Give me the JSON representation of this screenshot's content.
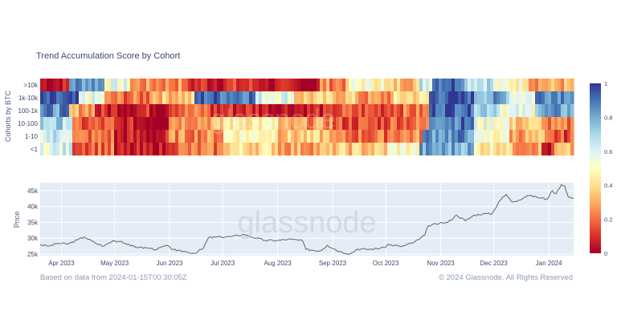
{
  "chart_data": [
    {
      "type": "heatmap",
      "title": "Trend Accumulation Score by Cohort",
      "ylabel": "Cohorts by BTC",
      "rows": [
        ">10k",
        "1k-10k",
        "100-1k",
        "10-100",
        "1-10",
        "<1"
      ],
      "colorbar": {
        "min": 0,
        "max": 1,
        "ticks": [
          0,
          0.2,
          0.4,
          0.6,
          0.8,
          1
        ],
        "tick_labels": [
          "0",
          "0.2",
          "0.4",
          "0.6",
          "0.8",
          "1"
        ],
        "colorscale": [
          "#a50026",
          "#d73027",
          "#f46d43",
          "#fdae61",
          "#fee090",
          "#ffffbf",
          "#e0f3f8",
          "#abd9e9",
          "#74add1",
          "#4575b4",
          "#313695"
        ]
      },
      "segments_note_free": true,
      "row_segments": {
        ">10k": [
          [
            "2023-03-20",
            0.05
          ],
          [
            "2023-04-05",
            0.85
          ],
          [
            "2023-04-25",
            0.55
          ],
          [
            "2023-05-10",
            0.25
          ],
          [
            "2023-06-10",
            0.1
          ],
          [
            "2023-07-25",
            0.02
          ],
          [
            "2023-08-25",
            0.25
          ],
          [
            "2023-09-10",
            0.5
          ],
          [
            "2023-09-30",
            0.35
          ],
          [
            "2023-10-20",
            0.65
          ],
          [
            "2023-10-28",
            0.95
          ],
          [
            "2023-11-15",
            0.7
          ],
          [
            "2023-11-30",
            0.5
          ],
          [
            "2023-12-20",
            0.3
          ]
        ],
        "1k-10k": [
          [
            "2023-03-20",
            0.9
          ],
          [
            "2023-04-10",
            0.55
          ],
          [
            "2023-04-25",
            0.2
          ],
          [
            "2023-05-20",
            0.35
          ],
          [
            "2023-06-15",
            0.92
          ],
          [
            "2023-07-20",
            0.6
          ],
          [
            "2023-08-10",
            0.35
          ],
          [
            "2023-09-15",
            0.25
          ],
          [
            "2023-10-05",
            0.4
          ],
          [
            "2023-10-25",
            0.95
          ],
          [
            "2023-11-20",
            0.8
          ],
          [
            "2023-12-10",
            0.6
          ],
          [
            "2023-12-25",
            0.9
          ]
        ],
        "100-1k": [
          [
            "2023-03-20",
            0.85
          ],
          [
            "2023-04-05",
            0.3
          ],
          [
            "2023-04-20",
            0.08
          ],
          [
            "2023-06-01",
            0.2
          ],
          [
            "2023-06-25",
            0.1
          ],
          [
            "2023-07-25",
            0.06
          ],
          [
            "2023-09-01",
            0.15
          ],
          [
            "2023-10-01",
            0.2
          ],
          [
            "2023-10-25",
            0.95
          ],
          [
            "2023-11-20",
            0.75
          ],
          [
            "2023-12-05",
            0.55
          ],
          [
            "2023-12-25",
            0.8
          ]
        ],
        "10-100": [
          [
            "2023-03-20",
            0.7
          ],
          [
            "2023-04-08",
            0.15
          ],
          [
            "2023-05-01",
            0.05
          ],
          [
            "2023-06-01",
            0.3
          ],
          [
            "2023-07-01",
            0.45
          ],
          [
            "2023-08-01",
            0.25
          ],
          [
            "2023-09-01",
            0.15
          ],
          [
            "2023-10-01",
            0.2
          ],
          [
            "2023-10-25",
            0.9
          ],
          [
            "2023-11-20",
            0.55
          ],
          [
            "2023-12-10",
            0.35
          ],
          [
            "2023-12-30",
            0.2
          ]
        ],
        "1-10": [
          [
            "2023-03-20",
            0.65
          ],
          [
            "2023-04-08",
            0.2
          ],
          [
            "2023-05-01",
            0.05
          ],
          [
            "2023-06-01",
            0.25
          ],
          [
            "2023-07-01",
            0.5
          ],
          [
            "2023-08-01",
            0.35
          ],
          [
            "2023-09-01",
            0.2
          ],
          [
            "2023-10-01",
            0.25
          ],
          [
            "2023-10-22",
            0.85
          ],
          [
            "2023-11-20",
            0.5
          ],
          [
            "2023-12-10",
            0.3
          ],
          [
            "2023-12-30",
            0.15
          ]
        ],
        "<1": [
          [
            "2023-03-20",
            0.6
          ],
          [
            "2023-04-08",
            0.2
          ],
          [
            "2023-05-01",
            0.03
          ],
          [
            "2023-06-01",
            0.2
          ],
          [
            "2023-07-01",
            0.4
          ],
          [
            "2023-08-01",
            0.3
          ],
          [
            "2023-09-01",
            0.35
          ],
          [
            "2023-10-01",
            0.5
          ],
          [
            "2023-10-20",
            0.8
          ],
          [
            "2023-11-20",
            0.45
          ],
          [
            "2023-12-10",
            0.3
          ],
          [
            "2023-12-28",
            0.05
          ],
          [
            "2024-01-05",
            0.3
          ]
        ]
      },
      "x_range": [
        "2023-03-20",
        "2024-01-15"
      ]
    },
    {
      "type": "line",
      "ylabel": "Price",
      "yticks": [
        25000,
        30000,
        35000,
        40000,
        45000
      ],
      "ytick_labels": [
        "25k",
        "30k",
        "35k",
        "40k",
        "45k"
      ],
      "ylim": [
        24500,
        47500
      ],
      "xticks": [
        "2023-04-01",
        "2023-05-01",
        "2023-06-01",
        "2023-07-01",
        "2023-08-01",
        "2023-09-01",
        "2023-10-01",
        "2023-11-01",
        "2023-12-01",
        "2024-01-01"
      ],
      "xtick_labels": [
        "Apr 2023",
        "May 2023",
        "Jun 2023",
        "Jul 2023",
        "Aug 2023",
        "Sep 2023",
        "Oct 2023",
        "Nov 2023",
        "Dec 2023",
        "Jan 2024"
      ],
      "x_range": [
        "2023-03-20",
        "2024-01-15"
      ],
      "series": [
        {
          "color": "#707070",
          "points": [
            [
              "2023-03-20",
              28000
            ],
            [
              "2023-03-25",
              27500
            ],
            [
              "2023-03-30",
              28400
            ],
            [
              "2023-04-05",
              28200
            ],
            [
              "2023-04-10",
              29500
            ],
            [
              "2023-04-14",
              30400
            ],
            [
              "2023-04-20",
              28500
            ],
            [
              "2023-04-25",
              27500
            ],
            [
              "2023-04-30",
              29200
            ],
            [
              "2023-05-05",
              29000
            ],
            [
              "2023-05-10",
              27600
            ],
            [
              "2023-05-15",
              27100
            ],
            [
              "2023-05-20",
              26900
            ],
            [
              "2023-05-25",
              26500
            ],
            [
              "2023-05-30",
              27700
            ],
            [
              "2023-06-05",
              26000
            ],
            [
              "2023-06-10",
              25800
            ],
            [
              "2023-06-15",
              25200
            ],
            [
              "2023-06-20",
              26800
            ],
            [
              "2023-06-23",
              30200
            ],
            [
              "2023-06-30",
              30400
            ],
            [
              "2023-07-06",
              30500
            ],
            [
              "2023-07-13",
              31200
            ],
            [
              "2023-07-20",
              30000
            ],
            [
              "2023-07-25",
              29300
            ],
            [
              "2023-08-01",
              29300
            ],
            [
              "2023-08-08",
              29700
            ],
            [
              "2023-08-15",
              29200
            ],
            [
              "2023-08-17",
              26500
            ],
            [
              "2023-08-25",
              26000
            ],
            [
              "2023-08-29",
              27800
            ],
            [
              "2023-09-05",
              25800
            ],
            [
              "2023-09-11",
              25100
            ],
            [
              "2023-09-15",
              26600
            ],
            [
              "2023-09-22",
              26500
            ],
            [
              "2023-09-30",
              27000
            ],
            [
              "2023-10-02",
              28000
            ],
            [
              "2023-10-10",
              27400
            ],
            [
              "2023-10-16",
              28500
            ],
            [
              "2023-10-20",
              29700
            ],
            [
              "2023-10-23",
              31000
            ],
            [
              "2023-10-25",
              34000
            ],
            [
              "2023-10-31",
              34600
            ],
            [
              "2023-11-05",
              35000
            ],
            [
              "2023-11-10",
              37300
            ],
            [
              "2023-11-15",
              35500
            ],
            [
              "2023-11-20",
              37300
            ],
            [
              "2023-11-25",
              37700
            ],
            [
              "2023-11-30",
              37700
            ],
            [
              "2023-12-04",
              41700
            ],
            [
              "2023-12-08",
              43800
            ],
            [
              "2023-12-11",
              41500
            ],
            [
              "2023-12-15",
              42000
            ],
            [
              "2023-12-20",
              43500
            ],
            [
              "2023-12-25",
              43000
            ],
            [
              "2023-12-31",
              42300
            ],
            [
              "2024-01-03",
              45000
            ],
            [
              "2024-01-05",
              44000
            ],
            [
              "2024-01-08",
              46900
            ],
            [
              "2024-01-10",
              46500
            ],
            [
              "2024-01-12",
              43000
            ],
            [
              "2024-01-15",
              42500
            ]
          ]
        }
      ]
    }
  ],
  "watermark": "glassnode",
  "footer": {
    "left": "Based on data from 2024-01-15T00:30:05Z",
    "right": "© 2024 Glassnode. All Rights Reserved"
  }
}
